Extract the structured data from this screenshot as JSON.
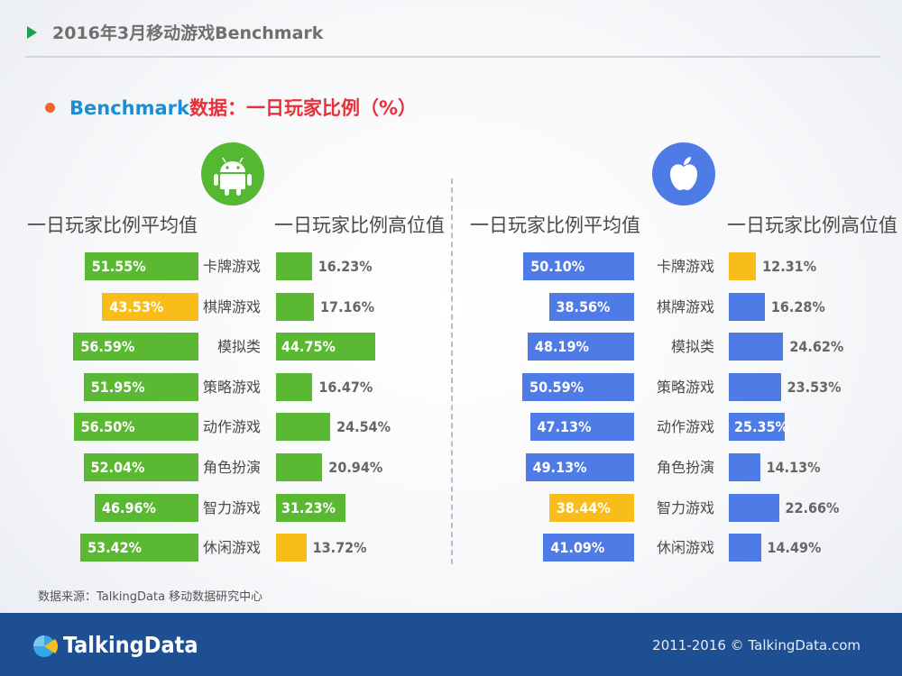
{
  "header": {
    "title": "2016年3月移动游戏Benchmark"
  },
  "subtitle": {
    "en": "Benchmark",
    "zh": "数据：一日玩家比例（%）"
  },
  "colors": {
    "android": "#5ab833",
    "ios": "#4f7be6",
    "highlight": "#f8bd18"
  },
  "icons": {
    "android": "android-icon",
    "ios": "apple-icon",
    "header": "play-triangle-icon",
    "logo": "talkingdata-logo-icon"
  },
  "chart_data": [
    {
      "type": "bar",
      "platform": "android",
      "categories": [
        "卡牌游戏",
        "棋牌游戏",
        "模拟类",
        "策略游戏",
        "动作游戏",
        "角色扮演",
        "智力游戏",
        "休闲游戏"
      ],
      "series": [
        {
          "name": "一日玩家比例平均值",
          "values": [
            51.55,
            43.53,
            56.59,
            51.95,
            56.5,
            52.04,
            46.96,
            53.42
          ],
          "labels": [
            "51.55%",
            "43.53%",
            "56.59%",
            "51.95%",
            "56.50%",
            "52.04%",
            "46.96%",
            "53.42%"
          ],
          "highlight_index": 1
        },
        {
          "name": "一日玩家比例高位值",
          "values": [
            16.23,
            17.16,
            44.75,
            16.47,
            24.54,
            20.94,
            31.23,
            13.72
          ],
          "labels": [
            "16.23%",
            "17.16%",
            "44.75%",
            "16.47%",
            "24.54%",
            "20.94%",
            "31.23%",
            "13.72%"
          ],
          "highlight_index": 7
        }
      ]
    },
    {
      "type": "bar",
      "platform": "ios",
      "categories": [
        "卡牌游戏",
        "棋牌游戏",
        "模拟类",
        "策略游戏",
        "动作游戏",
        "角色扮演",
        "智力游戏",
        "休闲游戏"
      ],
      "series": [
        {
          "name": "一日玩家比例平均值",
          "values": [
            50.1,
            38.56,
            48.19,
            50.59,
            47.13,
            49.13,
            38.44,
            41.09
          ],
          "labels": [
            "50.10%",
            "38.56%",
            "48.19%",
            "50.59%",
            "47.13%",
            "49.13%",
            "38.44%",
            "41.09%"
          ],
          "highlight_index": 6
        },
        {
          "name": "一日玩家比例高位值",
          "values": [
            12.31,
            16.28,
            24.62,
            23.53,
            25.35,
            14.13,
            22.66,
            14.49
          ],
          "labels": [
            "12.31%",
            "16.28%",
            "24.62%",
            "23.53%",
            "25.35%",
            "14.13%",
            "22.66%",
            "14.49%"
          ],
          "highlight_index": 0
        }
      ]
    }
  ],
  "source": "数据来源：TalkingData 移动数据研究中心",
  "footer": {
    "brand": "TalkingData",
    "copyright": "2011-2016 © TalkingData.com"
  }
}
